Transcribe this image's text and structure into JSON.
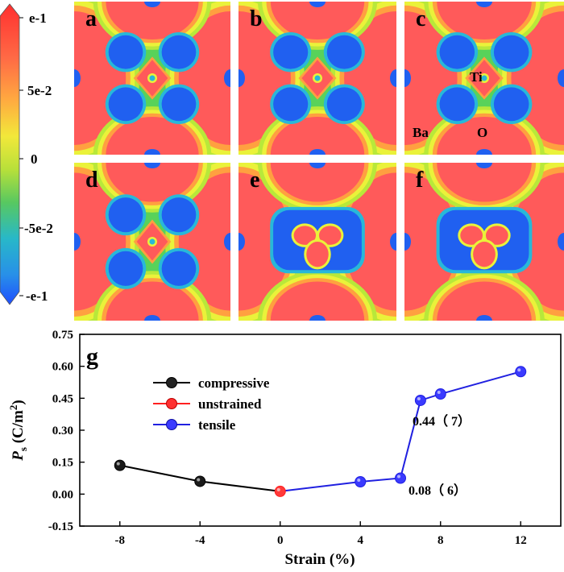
{
  "colorbar": {
    "ticks": [
      "e-1",
      "5e-2",
      "0",
      "-5e-2",
      "-e-1"
    ]
  },
  "panels": [
    {
      "label": "a",
      "mode": "symmetric"
    },
    {
      "label": "b",
      "mode": "symmetric"
    },
    {
      "label": "c",
      "mode": "symmetric"
    },
    {
      "label": "d",
      "mode": "symmetric"
    },
    {
      "label": "e",
      "mode": "polar"
    },
    {
      "label": "f",
      "mode": "polar"
    }
  ],
  "atom_labels": {
    "ti": "Ti",
    "ba": "Ba",
    "o": "O"
  },
  "contour_colors": {
    "high": "#ff5a5a",
    "orange": "#ffa040",
    "yellow": "#eaf23a",
    "lime": "#b8e83a",
    "green": "#58d25a",
    "cyan": "#28b8d8",
    "low": "#2060f0"
  },
  "chart_data": {
    "type": "line",
    "panel_label": "g",
    "title": "",
    "xlabel": "Strain (%)",
    "ylabel": "P_s (C/m^2)",
    "ylabel_parts": {
      "symbol": "P",
      "subscript": "s",
      "unit": "(C/m",
      "sup": "2",
      "close": ")"
    },
    "xlim": [
      -10,
      14
    ],
    "ylim": [
      -0.15,
      0.75
    ],
    "xticks": [
      -8,
      -4,
      0,
      4,
      8,
      12
    ],
    "xtick_labels": [
      "-8",
      "-4",
      "0",
      "4",
      "8",
      "12"
    ],
    "yticks": [
      -0.15,
      0.0,
      0.15,
      0.3,
      0.45,
      0.6,
      0.75
    ],
    "ytick_labels": [
      "-0.15",
      "0.00",
      "0.15",
      "0.30",
      "0.45",
      "0.60",
      "0.75"
    ],
    "series": [
      {
        "name": "compressive",
        "color": "#000000",
        "points": [
          [
            -8,
            0.135
          ],
          [
            -4,
            0.06
          ],
          [
            0,
            0.013
          ]
        ]
      },
      {
        "name": "unstrained",
        "color": "#ff2020",
        "points": [
          [
            0,
            0.013
          ]
        ]
      },
      {
        "name": "tensile",
        "color": "#2020e0",
        "points": [
          [
            0,
            0.013
          ],
          [
            4,
            0.058
          ],
          [
            6,
            0.075
          ],
          [
            7,
            0.44
          ],
          [
            8,
            0.47
          ],
          [
            12,
            0.575
          ]
        ]
      }
    ],
    "annotations": [
      {
        "text": "0.44（ 7）",
        "x": 7,
        "y": 0.44
      },
      {
        "text": "0.08（ 6）",
        "x": 6,
        "y": 0.08
      }
    ]
  }
}
